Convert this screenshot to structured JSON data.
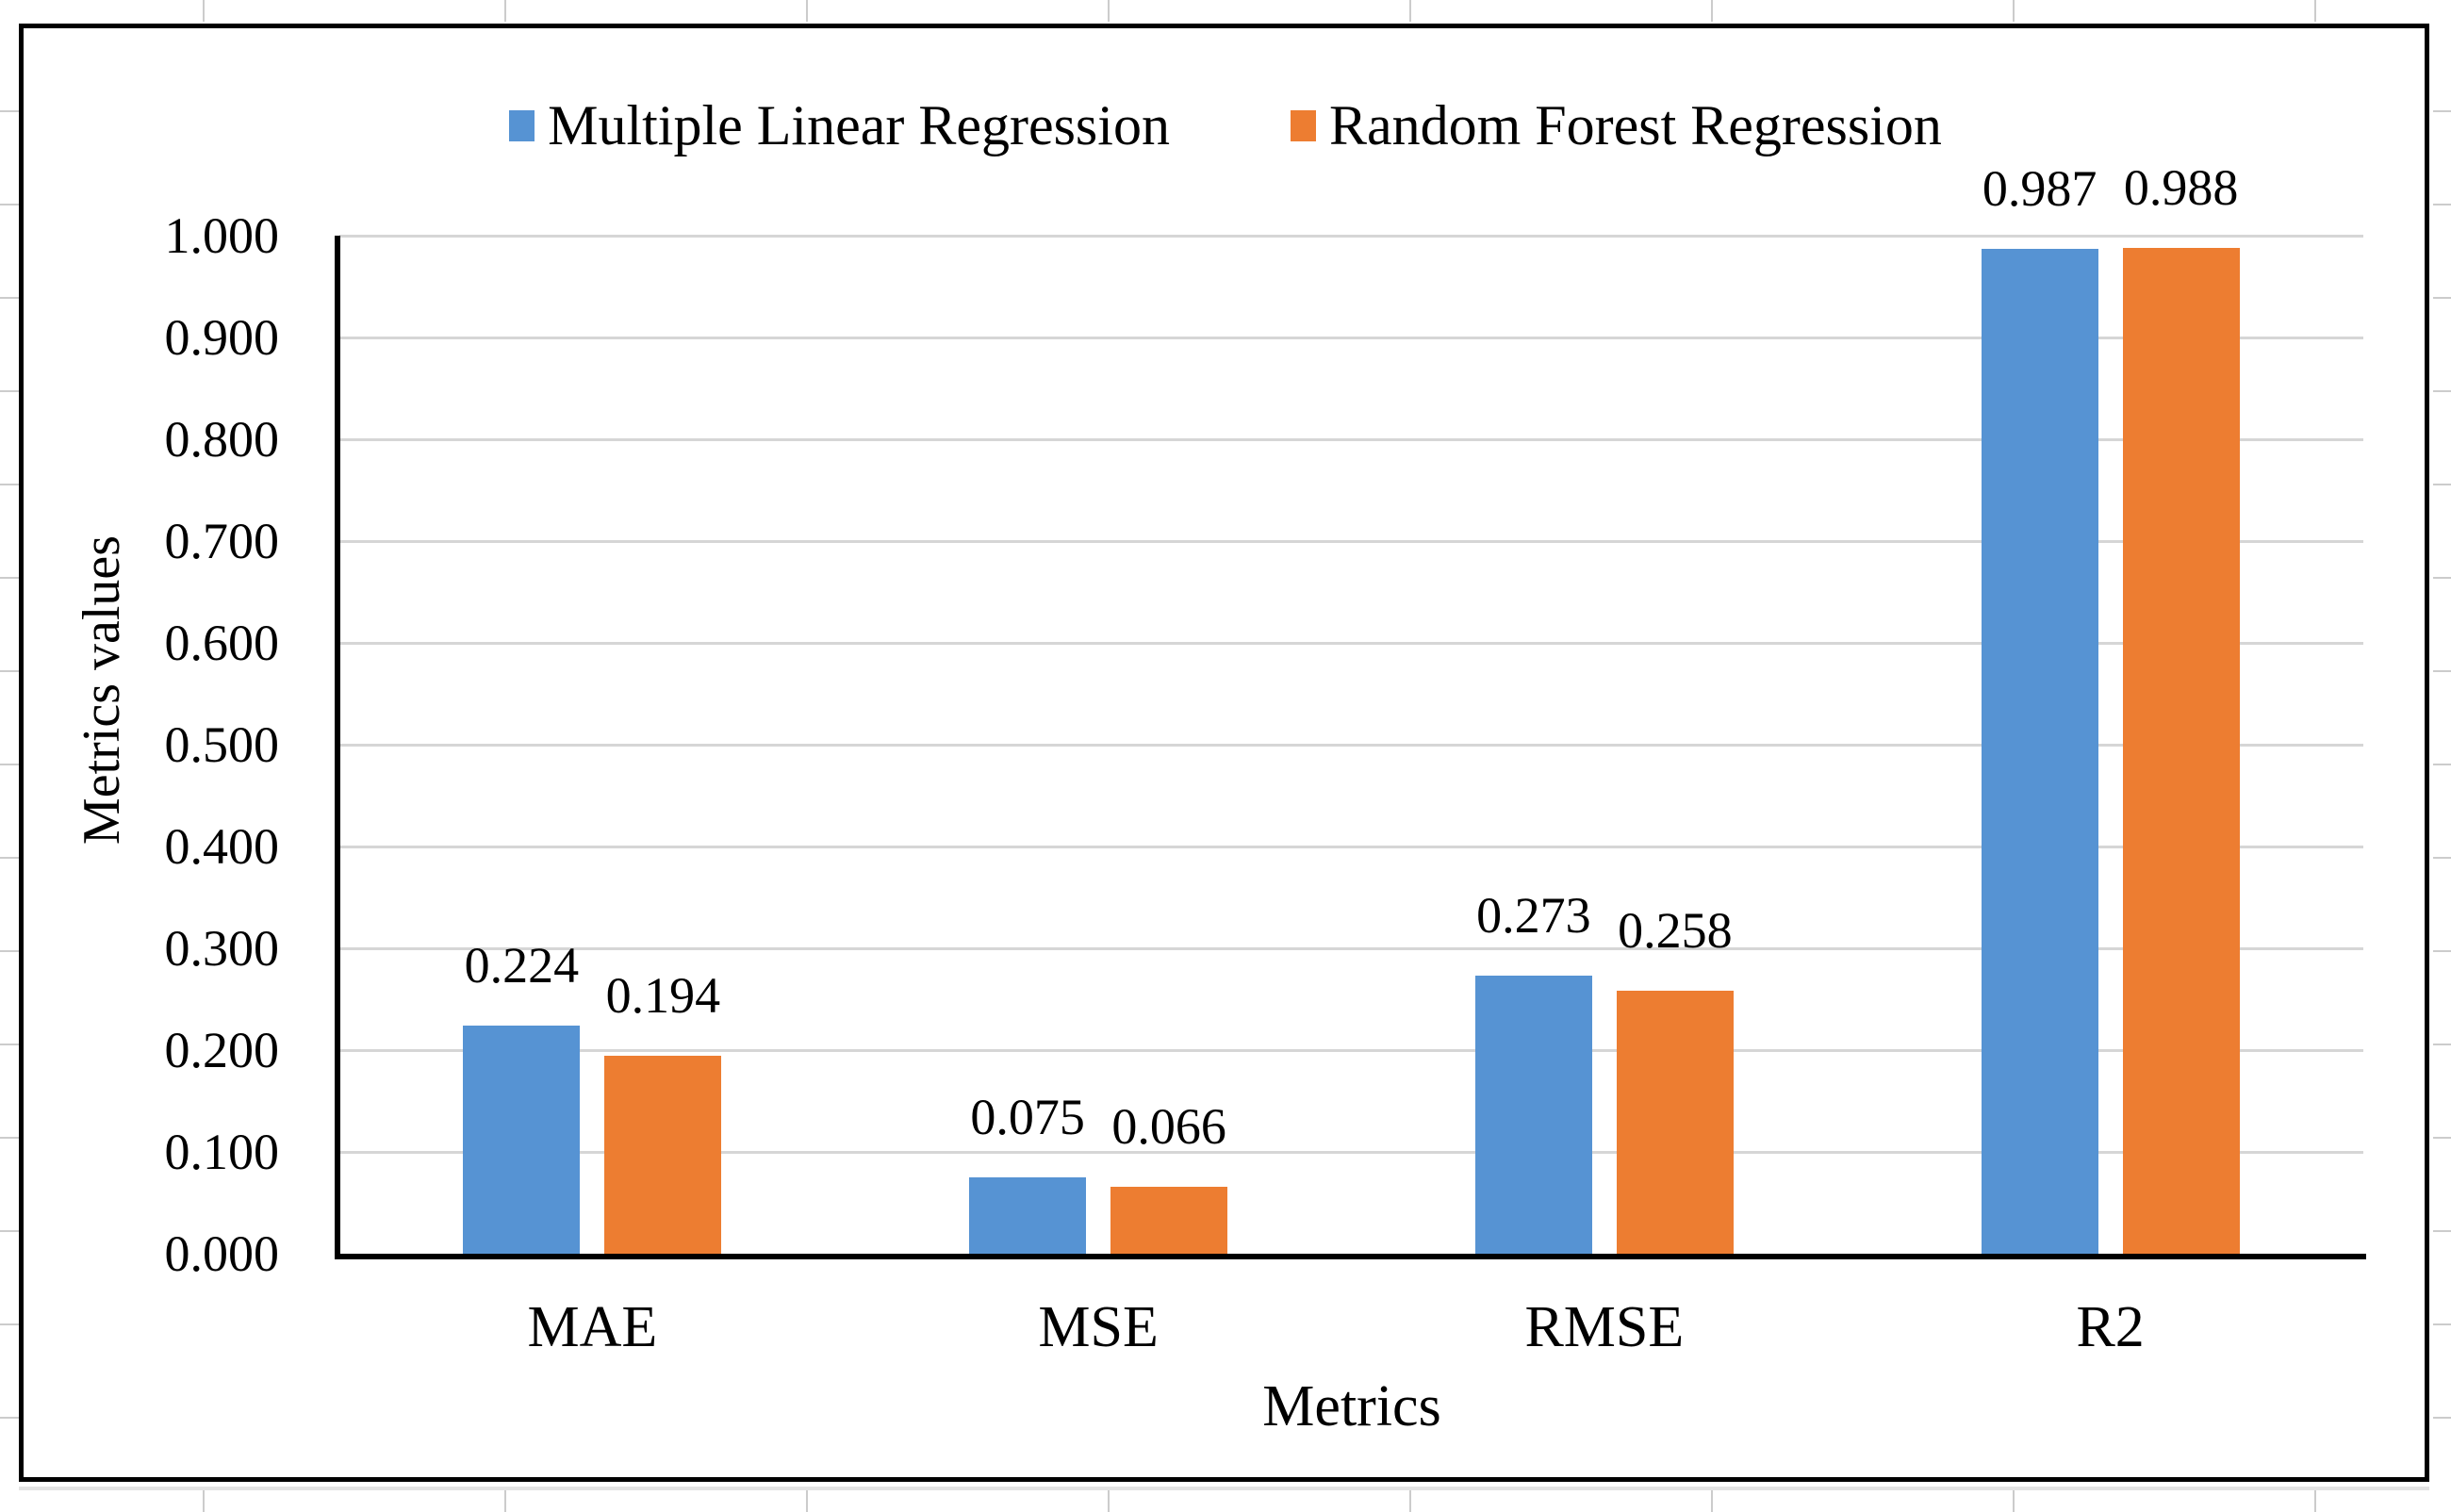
{
  "chart_data": {
    "type": "bar",
    "title": "",
    "categories": [
      "MAE",
      "MSE",
      "RMSE",
      "R2"
    ],
    "series": [
      {
        "name": "Multiple Linear Regression",
        "color": "#5693d3",
        "values": [
          0.224,
          0.075,
          0.273,
          0.987
        ],
        "data_labels": [
          "0.224",
          "0.075",
          "0.273",
          "0.987"
        ]
      },
      {
        "name": "Random Forest Regression",
        "color": "#ed7d31",
        "values": [
          0.194,
          0.066,
          0.258,
          0.988
        ],
        "data_labels": [
          "0.194",
          "0.066",
          "0.258",
          "0.988"
        ]
      }
    ],
    "xlabel": "Metrics",
    "ylabel": "Metrics values",
    "ylim": [
      0,
      1
    ],
    "ytick_labels": [
      "0.000",
      "0.100",
      "0.200",
      "0.300",
      "0.400",
      "0.500",
      "0.600",
      "0.700",
      "0.800",
      "0.900",
      "1.000"
    ],
    "grid": true,
    "gridline_color": "#d6d6d6",
    "axis_color": "#000000",
    "legend_position": "top"
  }
}
